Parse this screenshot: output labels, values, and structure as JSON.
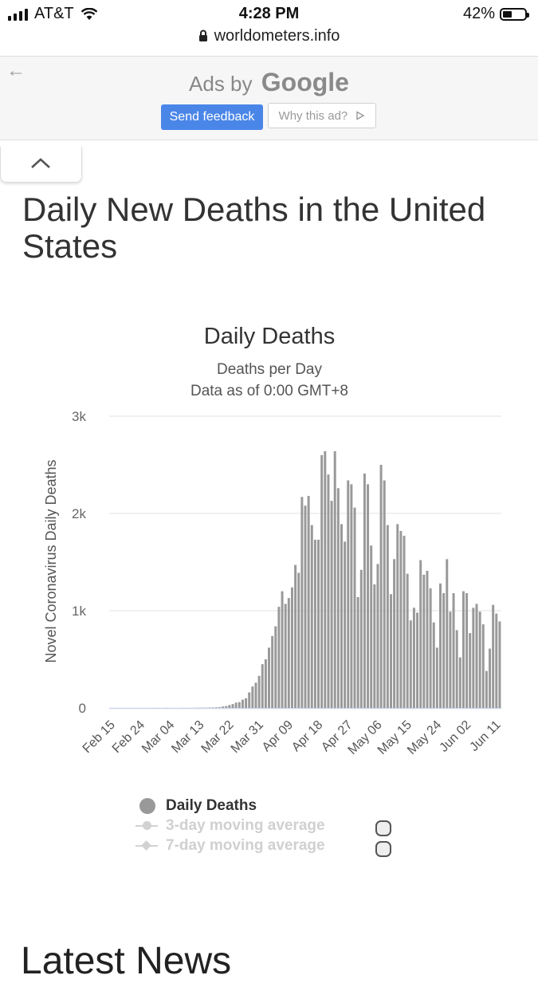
{
  "status_bar": {
    "carrier": "AT&T",
    "time": "4:28 PM",
    "battery": "42%",
    "battery_level": 0.42
  },
  "browser": {
    "url": "worldometers.info"
  },
  "ad": {
    "ads_by": "Ads by",
    "brand": "Google",
    "send_feedback": "Send feedback",
    "why_this_ad": "Why this ad?"
  },
  "page": {
    "title": "Daily New Deaths in the United States",
    "next_heading": "Latest News"
  },
  "chart_data": {
    "type": "bar",
    "title": "Daily Deaths",
    "subtitle_lines": [
      "Deaths per Day",
      "Data as of 0:00 GMT+8"
    ],
    "ylabel": "Novel Coronavirus Daily Deaths",
    "ylim": [
      0,
      3000
    ],
    "yticks": [
      0,
      1000,
      2000,
      3000
    ],
    "ytick_labels": [
      "0",
      "1k",
      "2k",
      "3k"
    ],
    "grid": true,
    "x_start": "Feb 15",
    "xtick_labels": [
      "Feb 15",
      "Feb 24",
      "Mar 04",
      "Mar 13",
      "Mar 22",
      "Mar 31",
      "Apr 09",
      "Apr 18",
      "Apr 27",
      "May 06",
      "May 15",
      "May 24",
      "Jun 02",
      "Jun 11"
    ],
    "series": [
      {
        "name": "Daily Deaths",
        "values": [
          0,
          0,
          0,
          0,
          0,
          0,
          0,
          0,
          0,
          0,
          0,
          0,
          0,
          0,
          1,
          0,
          0,
          1,
          0,
          0,
          0,
          0,
          1,
          0,
          1,
          1,
          2,
          2,
          3,
          3,
          4,
          5,
          6,
          8,
          15,
          20,
          30,
          40,
          55,
          60,
          85,
          100,
          160,
          220,
          260,
          330,
          450,
          500,
          620,
          740,
          840,
          1040,
          1200,
          1070,
          1130,
          1240,
          1470,
          1390,
          2170,
          2080,
          2180,
          1880,
          1730,
          1730,
          2600,
          2640,
          2400,
          2130,
          2640,
          2260,
          1890,
          1710,
          2340,
          2300,
          2060,
          1140,
          1420,
          2410,
          2300,
          1670,
          1270,
          1480,
          2500,
          2340,
          1880,
          1170,
          1530,
          1890,
          1820,
          1770,
          1380,
          900,
          1030,
          980,
          1520,
          1370,
          1410,
          1230,
          880,
          620,
          1280,
          1180,
          1530,
          990,
          1180,
          800,
          520,
          1200,
          1180,
          770,
          1030,
          1070,
          990,
          860,
          380,
          610,
          1060,
          970,
          890
        ]
      },
      {
        "name": "3-day moving average",
        "values": []
      },
      {
        "name": "7-day moving average",
        "values": []
      }
    ]
  }
}
